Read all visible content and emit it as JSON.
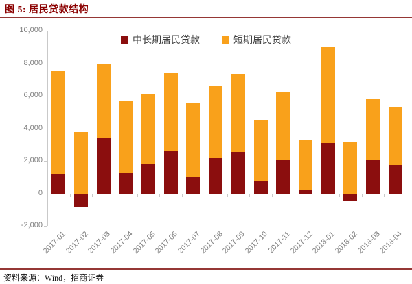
{
  "header": {
    "title": "图 5: 居民贷款结构"
  },
  "footer": {
    "source": "资料来源：Wind，招商证券"
  },
  "colors": {
    "title_text": "#8B0000",
    "divider": "#953735",
    "series_medium_long": "#8B0E0E",
    "series_short": "#F9A11B",
    "axis_line": "#C9C9C9",
    "axis_text": "#7F7F7F",
    "legend_text": "#404040"
  },
  "chart_data": {
    "type": "bar",
    "stacked": true,
    "title": "居民贷款结构",
    "xlabel": "",
    "ylabel": "",
    "grid": false,
    "legend_position": "top",
    "ylim": [
      -2000,
      10000
    ],
    "yticks": [
      {
        "label": "10,000",
        "value": 10000
      },
      {
        "label": "8,000",
        "value": 8000
      },
      {
        "label": "6,000",
        "value": 6000
      },
      {
        "label": "4,000",
        "value": 4000
      },
      {
        "label": "2,000",
        "value": 2000
      },
      {
        "label": "0",
        "value": 0
      },
      {
        "label": "-2,000",
        "value": -2000
      }
    ],
    "categories": [
      "2017-01",
      "2017-02",
      "2017-03",
      "2017-04",
      "2017-05",
      "2017-06",
      "2017-07",
      "2017-08",
      "2017-09",
      "2017-10",
      "2017-11",
      "2017-12",
      "2018-01",
      "2018-02",
      "2018-03",
      "2018-04"
    ],
    "series": [
      {
        "name": "中长期居民贷款",
        "color": "#8B0E0E",
        "values": [
          1200,
          -800,
          3400,
          1250,
          1800,
          2600,
          1050,
          2150,
          2550,
          800,
          2050,
          250,
          3100,
          -500,
          2050,
          1750
        ]
      },
      {
        "name": "短期居民贷款",
        "color": "#F9A11B",
        "values": [
          6300,
          3750,
          4550,
          4450,
          4300,
          4800,
          4550,
          4500,
          4800,
          3700,
          4150,
          3050,
          5900,
          3200,
          3750,
          3550
        ]
      }
    ]
  }
}
